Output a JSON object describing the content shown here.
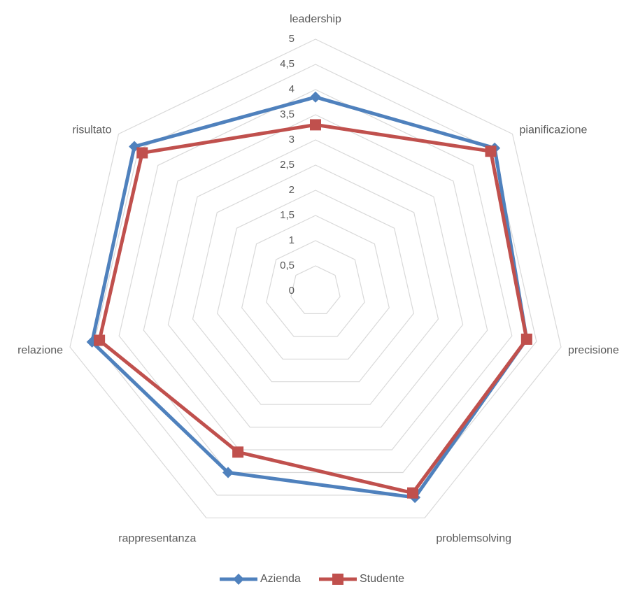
{
  "chart_data": {
    "type": "radar",
    "categories": [
      "leadership",
      "pianificazione",
      "precisione",
      "problemsolving",
      "rappresentanza",
      "relazione",
      "risultato"
    ],
    "series": [
      {
        "name": "Azienda",
        "values": [
          3.85,
          4.55,
          4.3,
          4.55,
          4.0,
          4.55,
          4.6
        ],
        "color": "#4F81BD",
        "marker": "diamond"
      },
      {
        "name": "Studente",
        "values": [
          3.3,
          4.45,
          4.3,
          4.45,
          3.55,
          4.4,
          4.4
        ],
        "color": "#C0504D",
        "marker": "square"
      }
    ],
    "rlim": [
      0,
      5
    ],
    "ticks": [
      "0",
      "0,5",
      "1",
      "1,5",
      "2",
      "2,5",
      "3",
      "3,5",
      "4",
      "4,5",
      "5"
    ],
    "grid": true,
    "legend": "bottom",
    "grid_color": "#D9D9D9",
    "text_color": "#595959"
  }
}
